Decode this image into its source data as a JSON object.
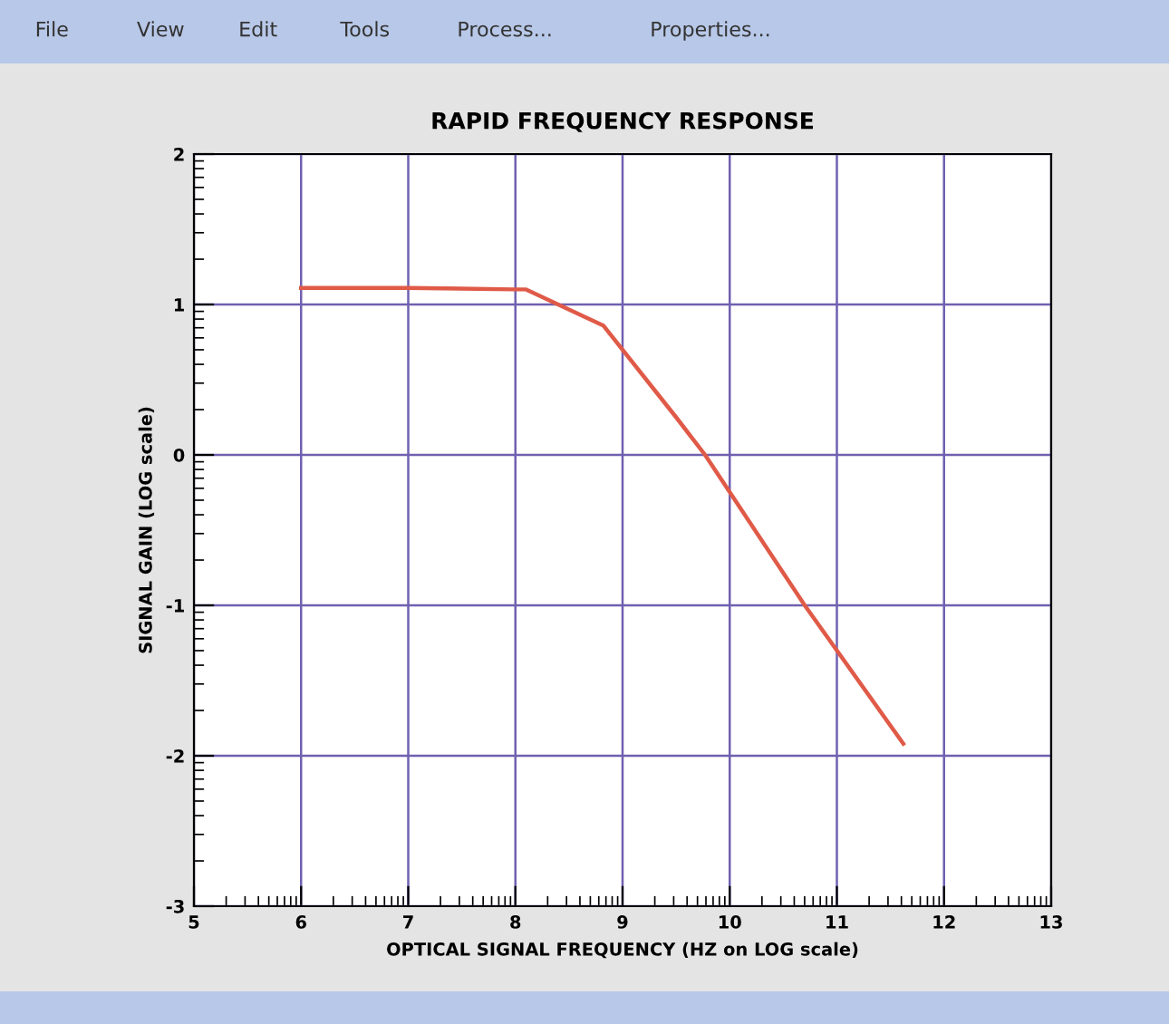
{
  "chart_data": {
    "type": "line",
    "title": "RAPID FREQUENCY RESPONSE",
    "xlabel": "OPTICAL SIGNAL FREQUENCY (HZ on LOG scale)",
    "ylabel": "SIGNAL GAIN (LOG scale)",
    "x": [
      6,
      7,
      8,
      8.1,
      8.82,
      9.5,
      9.77,
      10.7,
      11.62
    ],
    "series": [
      {
        "color": "#e05a48",
        "values": [
          1.11,
          1.11,
          1.1,
          1.1,
          0.86,
          0.25,
          0,
          -1,
          -1.92
        ]
      }
    ],
    "xlim": [
      5,
      13
    ],
    "xticks": [
      5,
      6,
      7,
      8,
      9,
      10,
      11,
      12,
      13
    ],
    "ylim": [
      -3,
      2
    ],
    "yticks": [
      -3,
      -2,
      -1,
      0,
      1,
      2
    ],
    "grid": true,
    "legend": false,
    "marker": "none",
    "line_style": "solid",
    "annotations": [
      "File",
      "View",
      "Edit",
      "Tools",
      "Process...",
      "Properties..."
    ]
  }
}
